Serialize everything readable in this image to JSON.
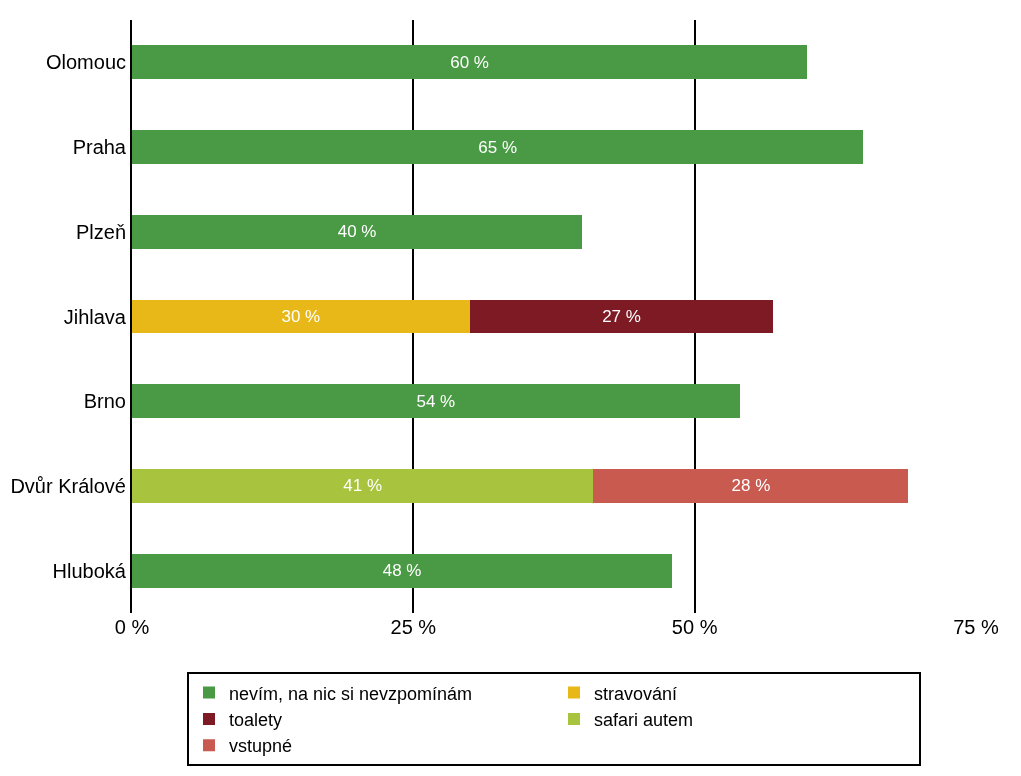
{
  "chart_data": {
    "type": "bar",
    "orientation": "horizontal",
    "stacked": true,
    "categories": [
      "Olomouc",
      "Praha",
      "Plzeň",
      "Jihlava",
      "Brno",
      "Dvůr Králové",
      "Hluboká"
    ],
    "series": [
      {
        "name": "nevím, na nic si nevzpomínám",
        "color": "#4a9a45",
        "values": [
          60,
          65,
          40,
          null,
          54,
          null,
          48
        ],
        "value_labels": [
          "60 %",
          "65 %",
          "40 %",
          null,
          "54 %",
          null,
          "48 %"
        ]
      },
      {
        "name": "stravování",
        "color": "#e8b818",
        "values": [
          null,
          null,
          null,
          30,
          null,
          null,
          null
        ],
        "value_labels": [
          null,
          null,
          null,
          "30 %",
          null,
          null,
          null
        ]
      },
      {
        "name": "toalety",
        "color": "#7d1a24",
        "values": [
          null,
          null,
          null,
          27,
          null,
          null,
          null
        ],
        "value_labels": [
          null,
          null,
          null,
          "27 %",
          null,
          null,
          null
        ]
      },
      {
        "name": "safari autem",
        "color": "#a8c43e",
        "values": [
          null,
          null,
          null,
          null,
          null,
          41,
          null
        ],
        "value_labels": [
          null,
          null,
          null,
          null,
          null,
          "41 %",
          null
        ]
      },
      {
        "name": "vstupné",
        "color": "#c85a50",
        "values": [
          null,
          null,
          null,
          null,
          null,
          28,
          null
        ],
        "value_labels": [
          null,
          null,
          null,
          null,
          null,
          "28 %",
          null
        ]
      }
    ],
    "xlim": [
      0,
      75
    ],
    "xticks": [
      {
        "value": 0,
        "label": "0 %"
      },
      {
        "value": 25,
        "label": "25 %"
      },
      {
        "value": 50,
        "label": "50 %"
      },
      {
        "value": 75,
        "label": "75 %"
      }
    ],
    "grid": "x",
    "legend": "bottom"
  }
}
